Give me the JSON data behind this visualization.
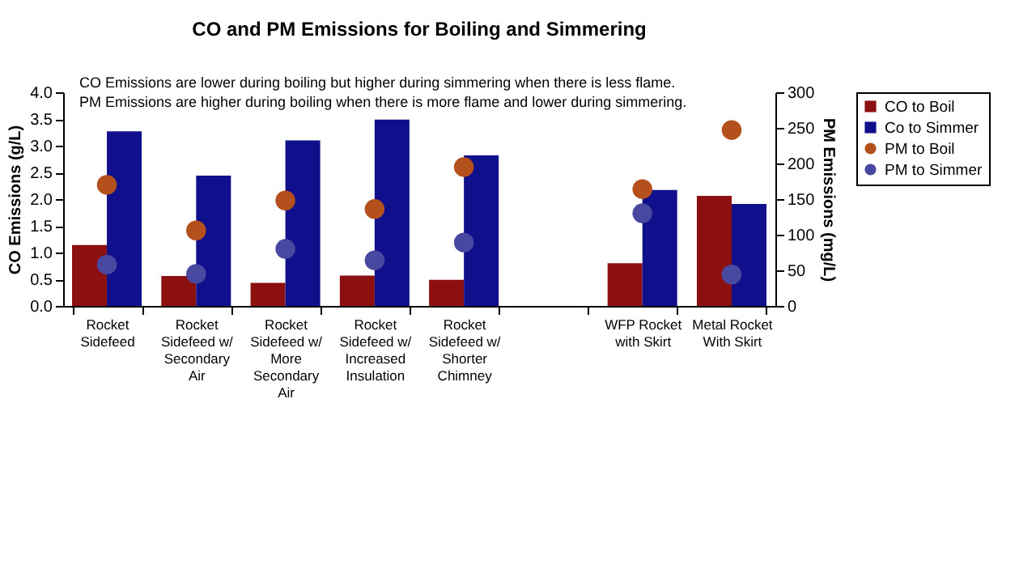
{
  "chart_data": {
    "type": "bar",
    "title": "CO and PM Emissions for Boiling and Simmering",
    "annotations": [
      "CO Emissions are lower during boiling but higher during simmering when there is less flame.",
      "PM Emissions are higher during boiling when there is more flame and lower during simmering."
    ],
    "categories": [
      "Rocket Sidefeed",
      "Rocket Sidefeed w/ Secondary Air",
      "Rocket Sidefeed w/ More Secondary Air",
      "Rocket Sidefeed w/ Increased Insulation",
      "Rocket Sidefeed w/ Shorter Chimney",
      null,
      "WFP Rocket with Skirt",
      "Metal Rocket With Skirt"
    ],
    "series": [
      {
        "name": "CO to Boil",
        "color": "#8c1010",
        "values": [
          1.14,
          0.56,
          0.43,
          0.57,
          0.49,
          null,
          0.8,
          2.06
        ]
      },
      {
        "name": "Co to Simmer",
        "color": "#10108c",
        "values": [
          3.27,
          2.44,
          3.1,
          3.49,
          2.82,
          null,
          2.17,
          1.91
        ]
      },
      {
        "name": "PM to Boil",
        "type": "scatter",
        "axis": "y2",
        "color": "#b4501c",
        "values": [
          170,
          106,
          148,
          136,
          195,
          null,
          164,
          247
        ]
      },
      {
        "name": "PM to Simmer",
        "type": "scatter",
        "axis": "y2",
        "color": "#4848a0",
        "values": [
          58,
          45,
          80,
          64,
          89,
          null,
          130,
          44
        ]
      }
    ],
    "ylabel": "CO Emissions (g/L)",
    "y2label": "PM Emissions (mg/L)",
    "ylim": [
      0,
      4
    ],
    "yticks": [
      {
        "value": 0,
        "label": "0.0"
      },
      0.5,
      {
        "value": 1,
        "label": "1.0"
      },
      1.5,
      {
        "value": 2,
        "label": "2.0"
      },
      2.5,
      {
        "value": 3,
        "label": "3.0"
      },
      3.5,
      {
        "value": 4,
        "label": "4.0"
      }
    ],
    "y2lim": [
      0,
      300
    ],
    "y2ticks": [
      0,
      50,
      100,
      150,
      200,
      250,
      300
    ],
    "legend": "right",
    "marker": "circle"
  }
}
